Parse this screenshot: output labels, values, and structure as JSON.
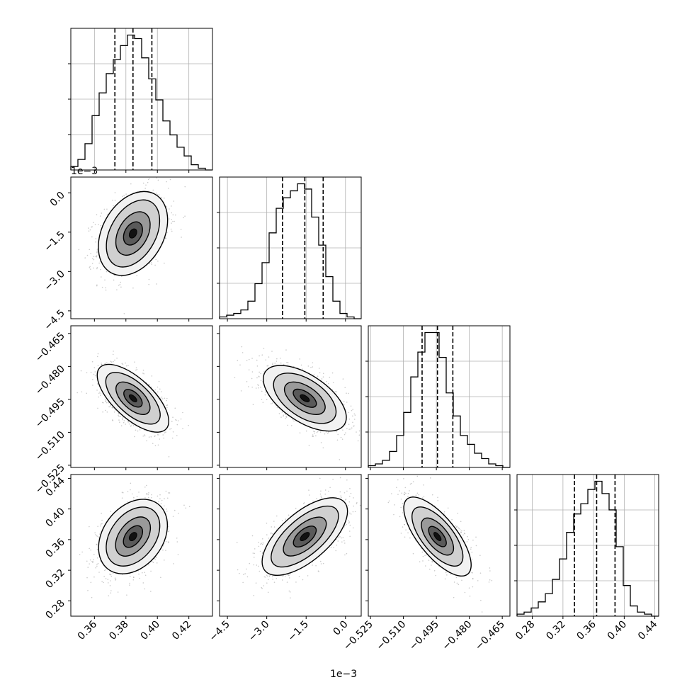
{
  "figure": {
    "type": "corner-plot",
    "ncols": 4,
    "background": "#ffffff",
    "ink": "#000000",
    "grid_color": "#b0b0b0",
    "bin_count": 20
  },
  "params": [
    {
      "index": 0,
      "range": [
        0.345,
        0.435
      ],
      "ticks": [
        0.36,
        0.38,
        0.4,
        0.42
      ],
      "tick_labels": [
        "0.36",
        "0.38",
        "0.40",
        "0.42"
      ],
      "offset": "",
      "quantiles": [
        0.373,
        0.3845,
        0.3965
      ],
      "hist_heights": [
        2,
        6,
        15,
        31,
        44,
        55,
        63,
        71,
        77,
        75,
        64,
        52,
        40,
        28,
        20,
        13,
        8,
        3,
        1,
        0
      ]
    },
    {
      "index": 1,
      "range": [
        -4.8,
        0.6
      ],
      "ticks": [
        -4.5,
        -3.0,
        -1.5,
        0.0
      ],
      "tick_labels": [
        "−4.5",
        "−3.0",
        "−1.5",
        "0.0"
      ],
      "offset": "1e−3",
      "quantiles": [
        -2.4,
        -1.55,
        -0.85
      ],
      "hist_heights": [
        1,
        2,
        3,
        5,
        10,
        20,
        32,
        49,
        63,
        69,
        73,
        77,
        74,
        58,
        42,
        24,
        10,
        3,
        1,
        0
      ]
    },
    {
      "index": 2,
      "range": [
        -0.526,
        -0.4615
      ],
      "ticks": [
        -0.525,
        -0.51,
        -0.495,
        -0.48,
        -0.465
      ],
      "tick_labels": [
        "−0.525",
        "−0.510",
        "−0.495",
        "−0.480",
        "−0.465"
      ],
      "offset": "",
      "quantiles": [
        -0.5015,
        -0.4945,
        -0.4875
      ],
      "hist_heights": [
        1,
        2,
        4,
        9,
        18,
        31,
        51,
        65,
        76,
        76,
        62,
        42,
        29,
        18,
        13,
        8,
        5,
        2,
        1,
        0
      ]
    },
    {
      "index": 3,
      "range": [
        0.26,
        0.445
      ],
      "ticks": [
        0.28,
        0.32,
        0.36,
        0.4,
        0.44
      ],
      "tick_labels": [
        "0.28",
        "0.32",
        "0.36",
        "0.40",
        "0.44"
      ],
      "offset": "",
      "quantiles": [
        0.335,
        0.364,
        0.388
      ],
      "hist_heights": [
        1,
        2,
        4,
        7,
        11,
        18,
        28,
        41,
        50,
        55,
        62,
        66,
        60,
        52,
        34,
        15,
        5,
        2,
        1,
        0
      ]
    }
  ],
  "pairs": [
    {
      "row": 1,
      "col": 0,
      "mean": [
        0.3845,
        -1.55
      ],
      "sd": [
        0.011,
        0.8
      ],
      "corr": 0.32,
      "points": 1100
    },
    {
      "row": 2,
      "col": 0,
      "mean": [
        0.3845,
        -0.4945
      ],
      "sd": [
        0.011,
        0.0075
      ],
      "corr": -0.62,
      "points": 1100
    },
    {
      "row": 2,
      "col": 1,
      "mean": [
        -1.55,
        -0.4945
      ],
      "sd": [
        0.8,
        0.0075
      ],
      "corr": -0.6,
      "points": 1100
    },
    {
      "row": 3,
      "col": 0,
      "mean": [
        0.3845,
        0.364
      ],
      "sd": [
        0.011,
        0.025
      ],
      "corr": 0.38,
      "points": 1100
    },
    {
      "row": 3,
      "col": 1,
      "mean": [
        -1.55,
        0.364
      ],
      "sd": [
        0.8,
        0.025
      ],
      "corr": 0.62,
      "points": 1100
    },
    {
      "row": 3,
      "col": 2,
      "mean": [
        -0.4945,
        0.364
      ],
      "sd": [
        0.0075,
        0.025
      ],
      "corr": -0.68,
      "points": 1100
    }
  ]
}
